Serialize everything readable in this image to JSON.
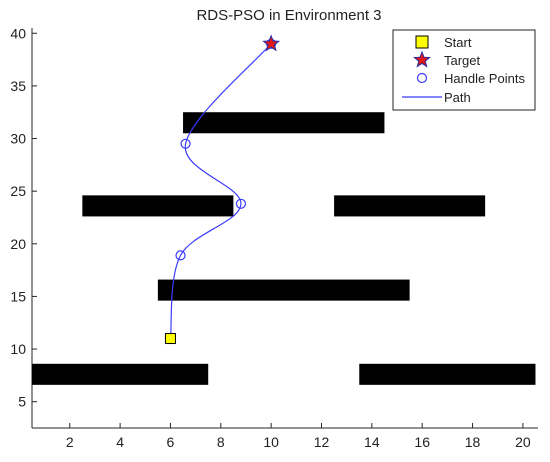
{
  "chart_data": {
    "type": "line",
    "title": "RDS-PSO in Environment 3",
    "xlabel": "",
    "ylabel": "",
    "xlim": [
      0.5,
      20.6
    ],
    "ylim": [
      2.5,
      40.5
    ],
    "xticks": [
      2,
      4,
      6,
      8,
      10,
      12,
      14,
      16,
      18,
      20
    ],
    "yticks": [
      5,
      10,
      15,
      20,
      25,
      30,
      35,
      40
    ],
    "grid": false,
    "legend_position": "top-right",
    "obstacles": [
      {
        "x0": 0.5,
        "x1": 7.5,
        "y0": 6.6,
        "y1": 8.6
      },
      {
        "x0": 13.5,
        "x1": 20.5,
        "y0": 6.6,
        "y1": 8.6
      },
      {
        "x0": 5.5,
        "x1": 15.5,
        "y0": 14.6,
        "y1": 16.6
      },
      {
        "x0": 2.5,
        "x1": 8.5,
        "y0": 22.6,
        "y1": 24.6
      },
      {
        "x0": 12.5,
        "x1": 18.5,
        "y0": 22.6,
        "y1": 24.6
      },
      {
        "x0": 6.5,
        "x1": 14.5,
        "y0": 30.5,
        "y1": 32.5
      }
    ],
    "start": {
      "x": 6.0,
      "y": 11.0
    },
    "target": {
      "x": 10.0,
      "y": 39.0
    },
    "handle_points": [
      {
        "x": 6.0,
        "y": 11.0
      },
      {
        "x": 6.4,
        "y": 18.9
      },
      {
        "x": 8.8,
        "y": 23.8
      },
      {
        "x": 6.6,
        "y": 29.5
      },
      {
        "x": 10.0,
        "y": 39.0
      }
    ],
    "series": [
      {
        "name": "Path",
        "color": "#3b3bff",
        "x": [
          6.0,
          6.4,
          8.8,
          6.6,
          10.0
        ],
        "y": [
          11.0,
          18.9,
          23.8,
          29.5,
          39.0
        ]
      }
    ],
    "legend": [
      {
        "label": "Start",
        "marker": "yellow-square"
      },
      {
        "label": "Target",
        "marker": "red-star"
      },
      {
        "label": "Handle Points",
        "marker": "blue-circle"
      },
      {
        "label": "Path",
        "marker": "blue-line"
      }
    ],
    "colors": {
      "obstacle": "#000000",
      "path": "#3b3bff",
      "start_fill": "#ffff00",
      "target_fill": "#e01818",
      "target_edge": "#2a2aa0"
    }
  }
}
